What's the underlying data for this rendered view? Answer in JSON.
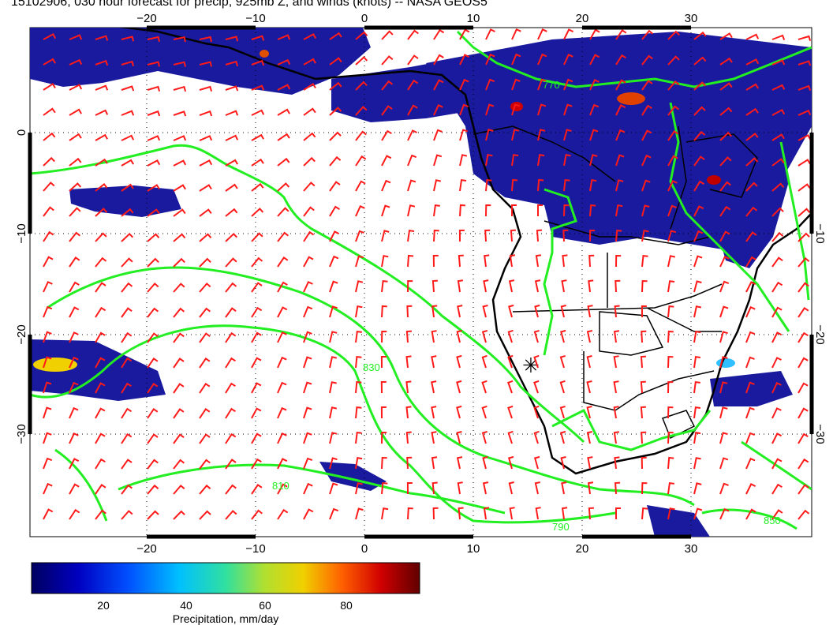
{
  "title": "15102906, 030 hour forecast for precip, 925mb Z, and winds (knots) -- NASA GEOS5",
  "lon_labels": [
    "−20",
    "−10",
    "0",
    "10",
    "20",
    "30"
  ],
  "lat_labels": [
    "0",
    "−10",
    "−20",
    "−30"
  ],
  "contour_labels": [
    "770",
    "790",
    "810",
    "830",
    "850"
  ],
  "colorbar": {
    "label": "Precipitation, mm/day",
    "ticks": [
      "20",
      "40",
      "60",
      "80"
    ]
  },
  "colors": {
    "contour": "#22ee22",
    "wind_barb": "#ff1a1a",
    "coast": "#000000",
    "precip_low": "#1a1aa0",
    "precip_high": "#8b0000"
  }
}
